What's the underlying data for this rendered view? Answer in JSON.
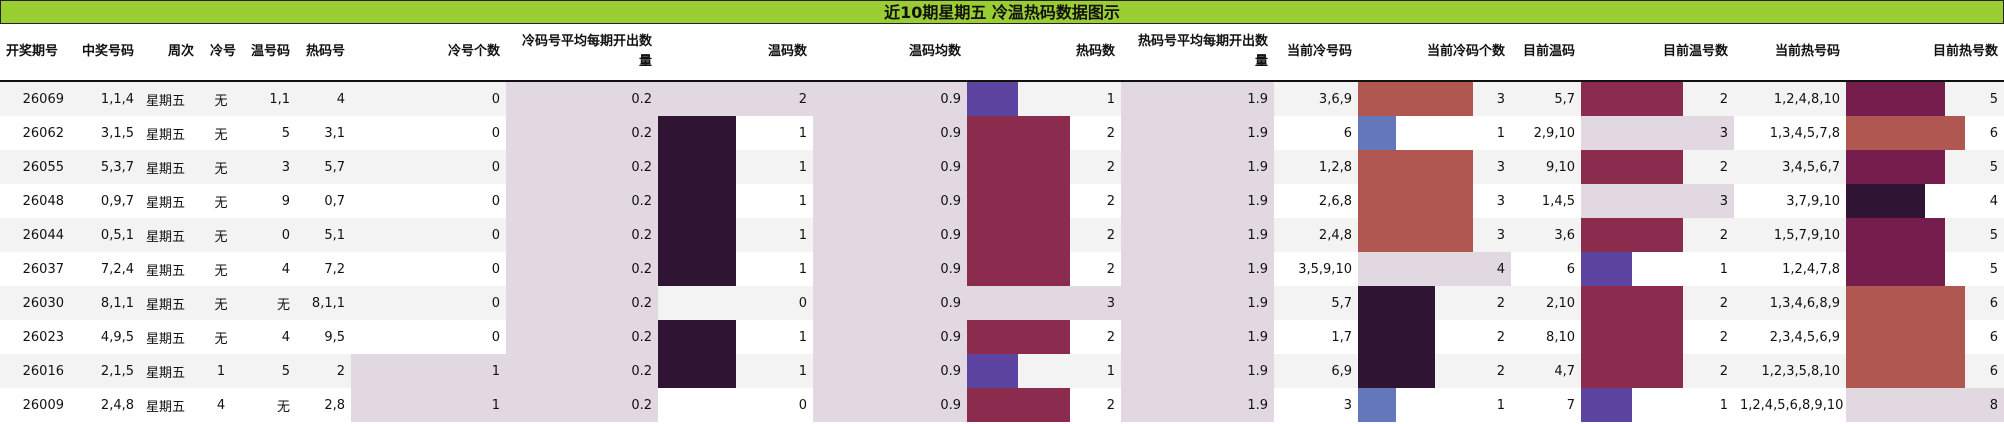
{
  "title": "近10期星期五 冷温热码数据图示",
  "headers": [
    "开奖期号",
    "中奖号码",
    "周次",
    "冷号",
    "温号码",
    "热码号",
    "冷号个数",
    "冷码号平均每期开出数量",
    "温码数",
    "温码均数",
    "热码数",
    "热码号平均每期开出数量",
    "当前冷号码",
    "当前冷码个数",
    "目前温码",
    "目前温号数",
    "当前热号码",
    "目前热号数"
  ],
  "colors": {
    "lavender": "#e2d8e2",
    "dark": "#2f1533",
    "crimson": "#8b2b4e",
    "purple": "#5e44a1",
    "blue": "#6577bb",
    "brown": "#b05752",
    "wine": "#751e4d",
    "title_bg": "#9acd32"
  },
  "bar_colors": {
    "cold_count": {
      "1": "#e2d8e2"
    },
    "cold_avg": {
      "0.2": "#e2d8e2"
    },
    "warm_count": {
      "1": "#2f1533",
      "2": "#e2d8e2"
    },
    "warm_avg": {
      "0.9": "#e2d8e2"
    },
    "hot_count": {
      "1": "#5e44a1",
      "2": "#8b2b4e",
      "3": "#e2d8e2"
    },
    "hot_avg": {
      "1.9": "#e2d8e2"
    },
    "cur_cold_count": {
      "1": "#6577bb",
      "2": "#2f1533",
      "3": "#b05752",
      "4": "#e2d8e2"
    },
    "cur_warm_count": {
      "1": "#5e44a1",
      "2": "#8b2b4e",
      "3": "#e2d8e2"
    },
    "cur_hot_count": {
      "4": "#2f1533",
      "5": "#751e4d",
      "6": "#b05752",
      "8": "#e2d8e2"
    }
  },
  "rows": [
    {
      "issue": "26069",
      "numbers": "1,1,4",
      "weekday": "星期五",
      "cold": "无",
      "warm": "1,1",
      "hot": "4",
      "cold_count": "0",
      "cold_avg": "0.2",
      "warm_count": "2",
      "warm_avg": "0.9",
      "hot_count": "1",
      "hot_avg": "1.9",
      "cur_cold": "3,6,9",
      "cur_cold_count": "3",
      "cur_warm": "5,7",
      "cur_warm_count": "2",
      "cur_hot": "1,2,4,8,10",
      "cur_hot_count": "5"
    },
    {
      "issue": "26062",
      "numbers": "3,1,5",
      "weekday": "星期五",
      "cold": "无",
      "warm": "5",
      "hot": "3,1",
      "cold_count": "0",
      "cold_avg": "0.2",
      "warm_count": "1",
      "warm_avg": "0.9",
      "hot_count": "2",
      "hot_avg": "1.9",
      "cur_cold": "6",
      "cur_cold_count": "1",
      "cur_warm": "2,9,10",
      "cur_warm_count": "3",
      "cur_hot": "1,3,4,5,7,8",
      "cur_hot_count": "6"
    },
    {
      "issue": "26055",
      "numbers": "5,3,7",
      "weekday": "星期五",
      "cold": "无",
      "warm": "3",
      "hot": "5,7",
      "cold_count": "0",
      "cold_avg": "0.2",
      "warm_count": "1",
      "warm_avg": "0.9",
      "hot_count": "2",
      "hot_avg": "1.9",
      "cur_cold": "1,2,8",
      "cur_cold_count": "3",
      "cur_warm": "9,10",
      "cur_warm_count": "2",
      "cur_hot": "3,4,5,6,7",
      "cur_hot_count": "5"
    },
    {
      "issue": "26048",
      "numbers": "0,9,7",
      "weekday": "星期五",
      "cold": "无",
      "warm": "9",
      "hot": "0,7",
      "cold_count": "0",
      "cold_avg": "0.2",
      "warm_count": "1",
      "warm_avg": "0.9",
      "hot_count": "2",
      "hot_avg": "1.9",
      "cur_cold": "2,6,8",
      "cur_cold_count": "3",
      "cur_warm": "1,4,5",
      "cur_warm_count": "3",
      "cur_hot": "3,7,9,10",
      "cur_hot_count": "4"
    },
    {
      "issue": "26044",
      "numbers": "0,5,1",
      "weekday": "星期五",
      "cold": "无",
      "warm": "0",
      "hot": "5,1",
      "cold_count": "0",
      "cold_avg": "0.2",
      "warm_count": "1",
      "warm_avg": "0.9",
      "hot_count": "2",
      "hot_avg": "1.9",
      "cur_cold": "2,4,8",
      "cur_cold_count": "3",
      "cur_warm": "3,6",
      "cur_warm_count": "2",
      "cur_hot": "1,5,7,9,10",
      "cur_hot_count": "5"
    },
    {
      "issue": "26037",
      "numbers": "7,2,4",
      "weekday": "星期五",
      "cold": "无",
      "warm": "4",
      "hot": "7,2",
      "cold_count": "0",
      "cold_avg": "0.2",
      "warm_count": "1",
      "warm_avg": "0.9",
      "hot_count": "2",
      "hot_avg": "1.9",
      "cur_cold": "3,5,9,10",
      "cur_cold_count": "4",
      "cur_warm": "6",
      "cur_warm_count": "1",
      "cur_hot": "1,2,4,7,8",
      "cur_hot_count": "5"
    },
    {
      "issue": "26030",
      "numbers": "8,1,1",
      "weekday": "星期五",
      "cold": "无",
      "warm": "无",
      "hot": "8,1,1",
      "cold_count": "0",
      "cold_avg": "0.2",
      "warm_count": "0",
      "warm_avg": "0.9",
      "hot_count": "3",
      "hot_avg": "1.9",
      "cur_cold": "5,7",
      "cur_cold_count": "2",
      "cur_warm": "2,10",
      "cur_warm_count": "2",
      "cur_hot": "1,3,4,6,8,9",
      "cur_hot_count": "6"
    },
    {
      "issue": "26023",
      "numbers": "4,9,5",
      "weekday": "星期五",
      "cold": "无",
      "warm": "4",
      "hot": "9,5",
      "cold_count": "0",
      "cold_avg": "0.2",
      "warm_count": "1",
      "warm_avg": "0.9",
      "hot_count": "2",
      "hot_avg": "1.9",
      "cur_cold": "1,7",
      "cur_cold_count": "2",
      "cur_warm": "8,10",
      "cur_warm_count": "2",
      "cur_hot": "2,3,4,5,6,9",
      "cur_hot_count": "6"
    },
    {
      "issue": "26016",
      "numbers": "2,1,5",
      "weekday": "星期五",
      "cold": "1",
      "warm": "5",
      "hot": "2",
      "cold_count": "1",
      "cold_avg": "0.2",
      "warm_count": "1",
      "warm_avg": "0.9",
      "hot_count": "1",
      "hot_avg": "1.9",
      "cur_cold": "6,9",
      "cur_cold_count": "2",
      "cur_warm": "4,7",
      "cur_warm_count": "2",
      "cur_hot": "1,2,3,5,8,10",
      "cur_hot_count": "6"
    },
    {
      "issue": "26009",
      "numbers": "2,4,8",
      "weekday": "星期五",
      "cold": "4",
      "warm": "无",
      "hot": "2,8",
      "cold_count": "1",
      "cold_avg": "0.2",
      "warm_count": "0",
      "warm_avg": "0.9",
      "hot_count": "2",
      "hot_avg": "1.9",
      "cur_cold": "3",
      "cur_cold_count": "1",
      "cur_warm": "7",
      "cur_warm_count": "1",
      "cur_hot": "1,2,4,5,6,8,9,10",
      "cur_hot_count": "8"
    }
  ]
}
